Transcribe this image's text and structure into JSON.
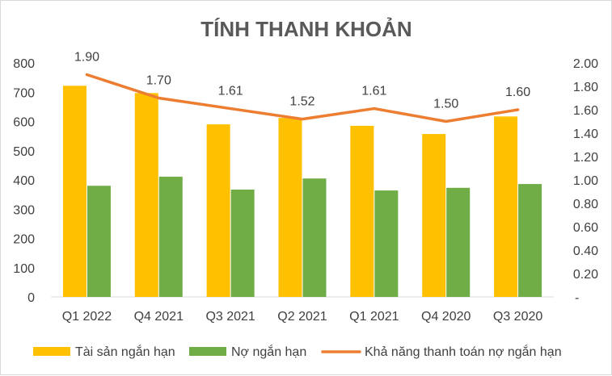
{
  "chart_data": {
    "type": "bar",
    "title": "TÍNH THANH KHOẢN",
    "categories": [
      "Q1 2022",
      "Q4 2021",
      "Q3 2021",
      "Q2 2021",
      "Q1 2021",
      "Q4 2020",
      "Q3 2020"
    ],
    "series": [
      {
        "name": "Tài sản ngắn hạn",
        "type": "bar",
        "axis": "left",
        "color": "#FFC000",
        "values": [
          722,
          697,
          590,
          612,
          585,
          557,
          617
        ]
      },
      {
        "name": "Nợ ngắn hạn",
        "type": "bar",
        "axis": "left",
        "color": "#70AD47",
        "values": [
          380,
          411,
          367,
          405,
          364,
          373,
          386
        ]
      },
      {
        "name": "Khả năng thanh toán nợ ngắn hạn",
        "type": "line",
        "axis": "right",
        "color": "#ED7D31",
        "values": [
          1.9,
          1.7,
          1.61,
          1.52,
          1.61,
          1.5,
          1.6
        ],
        "labels": [
          "1.90",
          "1.70",
          "1.61",
          "1.52",
          "1.61",
          "1.50",
          "1.60"
        ]
      }
    ],
    "left_axis": {
      "ylim": [
        0,
        800
      ],
      "ticks": [
        "0",
        "100",
        "200",
        "300",
        "400",
        "500",
        "600",
        "700",
        "800"
      ]
    },
    "right_axis": {
      "ylim": [
        0,
        2.0
      ],
      "ticks": [
        "-",
        "0.20",
        "0.40",
        "0.60",
        "0.80",
        "1.00",
        "1.20",
        "1.40",
        "1.60",
        "1.80",
        "2.00"
      ]
    },
    "grid": false,
    "legend": "bottom"
  }
}
